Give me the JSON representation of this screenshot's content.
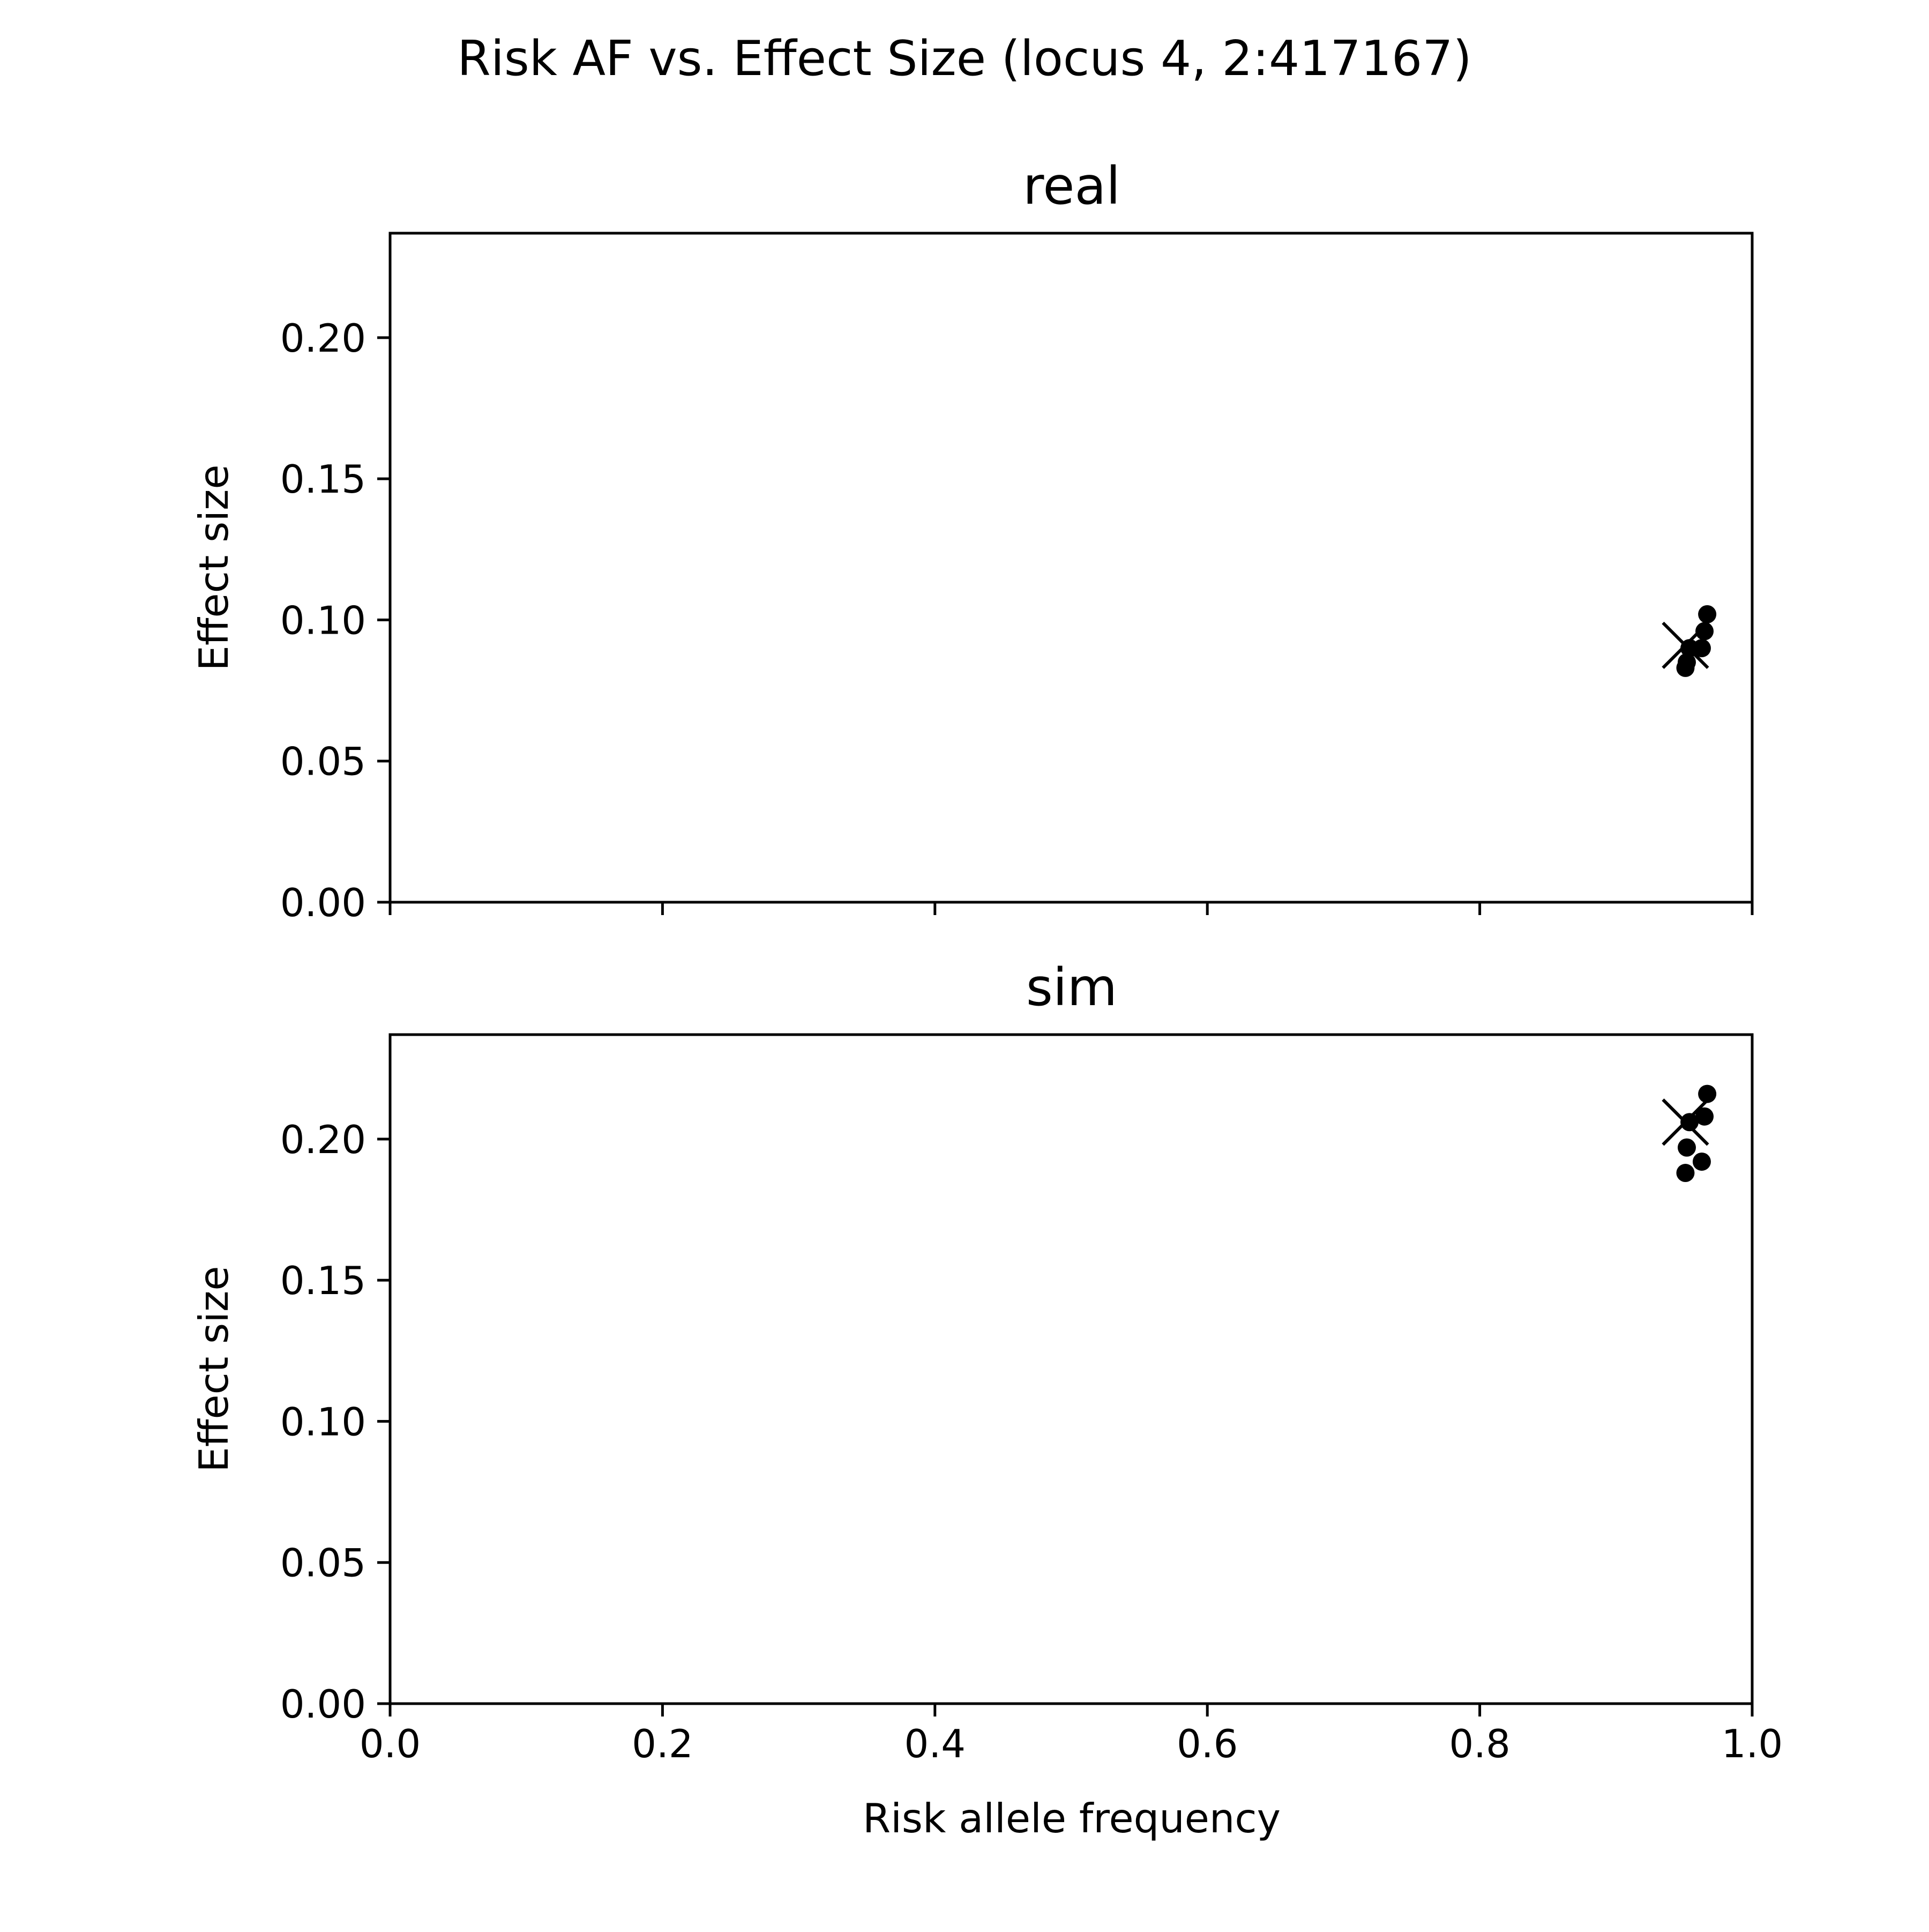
{
  "figure": {
    "title": "Risk AF vs. Effect Size (locus 4, 2:417167)"
  },
  "chart_data": [
    {
      "type": "scatter",
      "title": "real",
      "xlabel": "",
      "ylabel": "Effect size",
      "xlim": [
        0.0,
        1.0
      ],
      "ylim": [
        0.0,
        0.237
      ],
      "xticks": [
        "0.0",
        "0.2",
        "0.4",
        "0.6",
        "0.8",
        "1.0"
      ],
      "xtick_labels_visible": false,
      "yticks": [
        "0.00",
        "0.05",
        "0.10",
        "0.15",
        "0.20"
      ],
      "grid": false,
      "color": "#000000",
      "series": [
        {
          "marker": "circle",
          "points": [
            {
              "x": 0.967,
              "y": 0.102
            },
            {
              "x": 0.965,
              "y": 0.096
            },
            {
              "x": 0.963,
              "y": 0.09
            },
            {
              "x": 0.954,
              "y": 0.09
            },
            {
              "x": 0.952,
              "y": 0.085
            },
            {
              "x": 0.951,
              "y": 0.083
            }
          ]
        },
        {
          "marker": "x",
          "points": [
            {
              "x": 0.951,
              "y": 0.091
            }
          ]
        }
      ]
    },
    {
      "type": "scatter",
      "title": "sim",
      "xlabel": "Risk allele frequency",
      "ylabel": "Effect size",
      "xlim": [
        0.0,
        1.0
      ],
      "ylim": [
        0.0,
        0.237
      ],
      "xticks": [
        "0.0",
        "0.2",
        "0.4",
        "0.6",
        "0.8",
        "1.0"
      ],
      "xtick_labels_visible": true,
      "yticks": [
        "0.00",
        "0.05",
        "0.10",
        "0.15",
        "0.20"
      ],
      "grid": false,
      "color": "#000000",
      "series": [
        {
          "marker": "circle",
          "points": [
            {
              "x": 0.967,
              "y": 0.216
            },
            {
              "x": 0.965,
              "y": 0.208
            },
            {
              "x": 0.954,
              "y": 0.206
            },
            {
              "x": 0.952,
              "y": 0.197
            },
            {
              "x": 0.963,
              "y": 0.192
            },
            {
              "x": 0.951,
              "y": 0.188
            }
          ]
        },
        {
          "marker": "x",
          "points": [
            {
              "x": 0.951,
              "y": 0.206
            }
          ]
        }
      ]
    }
  ]
}
